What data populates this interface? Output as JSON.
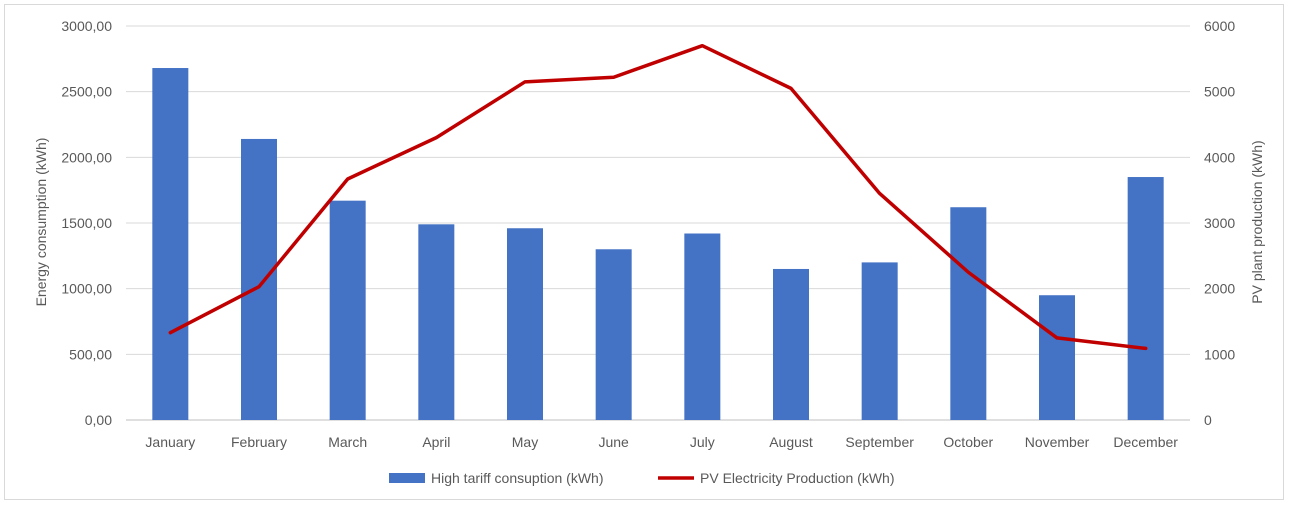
{
  "chart_data": {
    "type": "bar",
    "categories": [
      "January",
      "February",
      "March",
      "April",
      "May",
      "June",
      "July",
      "August",
      "September",
      "October",
      "November",
      "December"
    ],
    "series": [
      {
        "name": "High tariff consuption (kWh)",
        "type": "bar",
        "axis": "left",
        "color": "#4472C4",
        "values": [
          2680,
          2140,
          1670,
          1490,
          1460,
          1300,
          1420,
          1150,
          1200,
          1620,
          950,
          1850
        ]
      },
      {
        "name": "PV Electricity Production (kWh)",
        "type": "line",
        "axis": "right",
        "color": "#C00000",
        "values": [
          1330,
          2030,
          3670,
          4300,
          5150,
          5220,
          5700,
          5050,
          3450,
          2250,
          1250,
          1090
        ]
      }
    ],
    "ylabel": "Energy consumption (kWh)",
    "ylabel_right": "PV plant production (kWh)",
    "ylim": [
      0,
      3000
    ],
    "ylim_right": [
      0,
      6000
    ],
    "yticks": [
      0,
      500,
      1000,
      1500,
      2000,
      2500,
      3000
    ],
    "yticks_right": [
      0,
      1000,
      2000,
      3000,
      4000,
      5000,
      6000
    ],
    "ytick_labels": [
      "0,00",
      "500,00",
      "1000,00",
      "1500,00",
      "2000,00",
      "2500,00",
      "3000,00"
    ],
    "ytick_labels_right": [
      "0",
      "1000",
      "2000",
      "3000",
      "4000",
      "5000",
      "6000"
    ],
    "grid": true,
    "legend_position": "bottom"
  }
}
